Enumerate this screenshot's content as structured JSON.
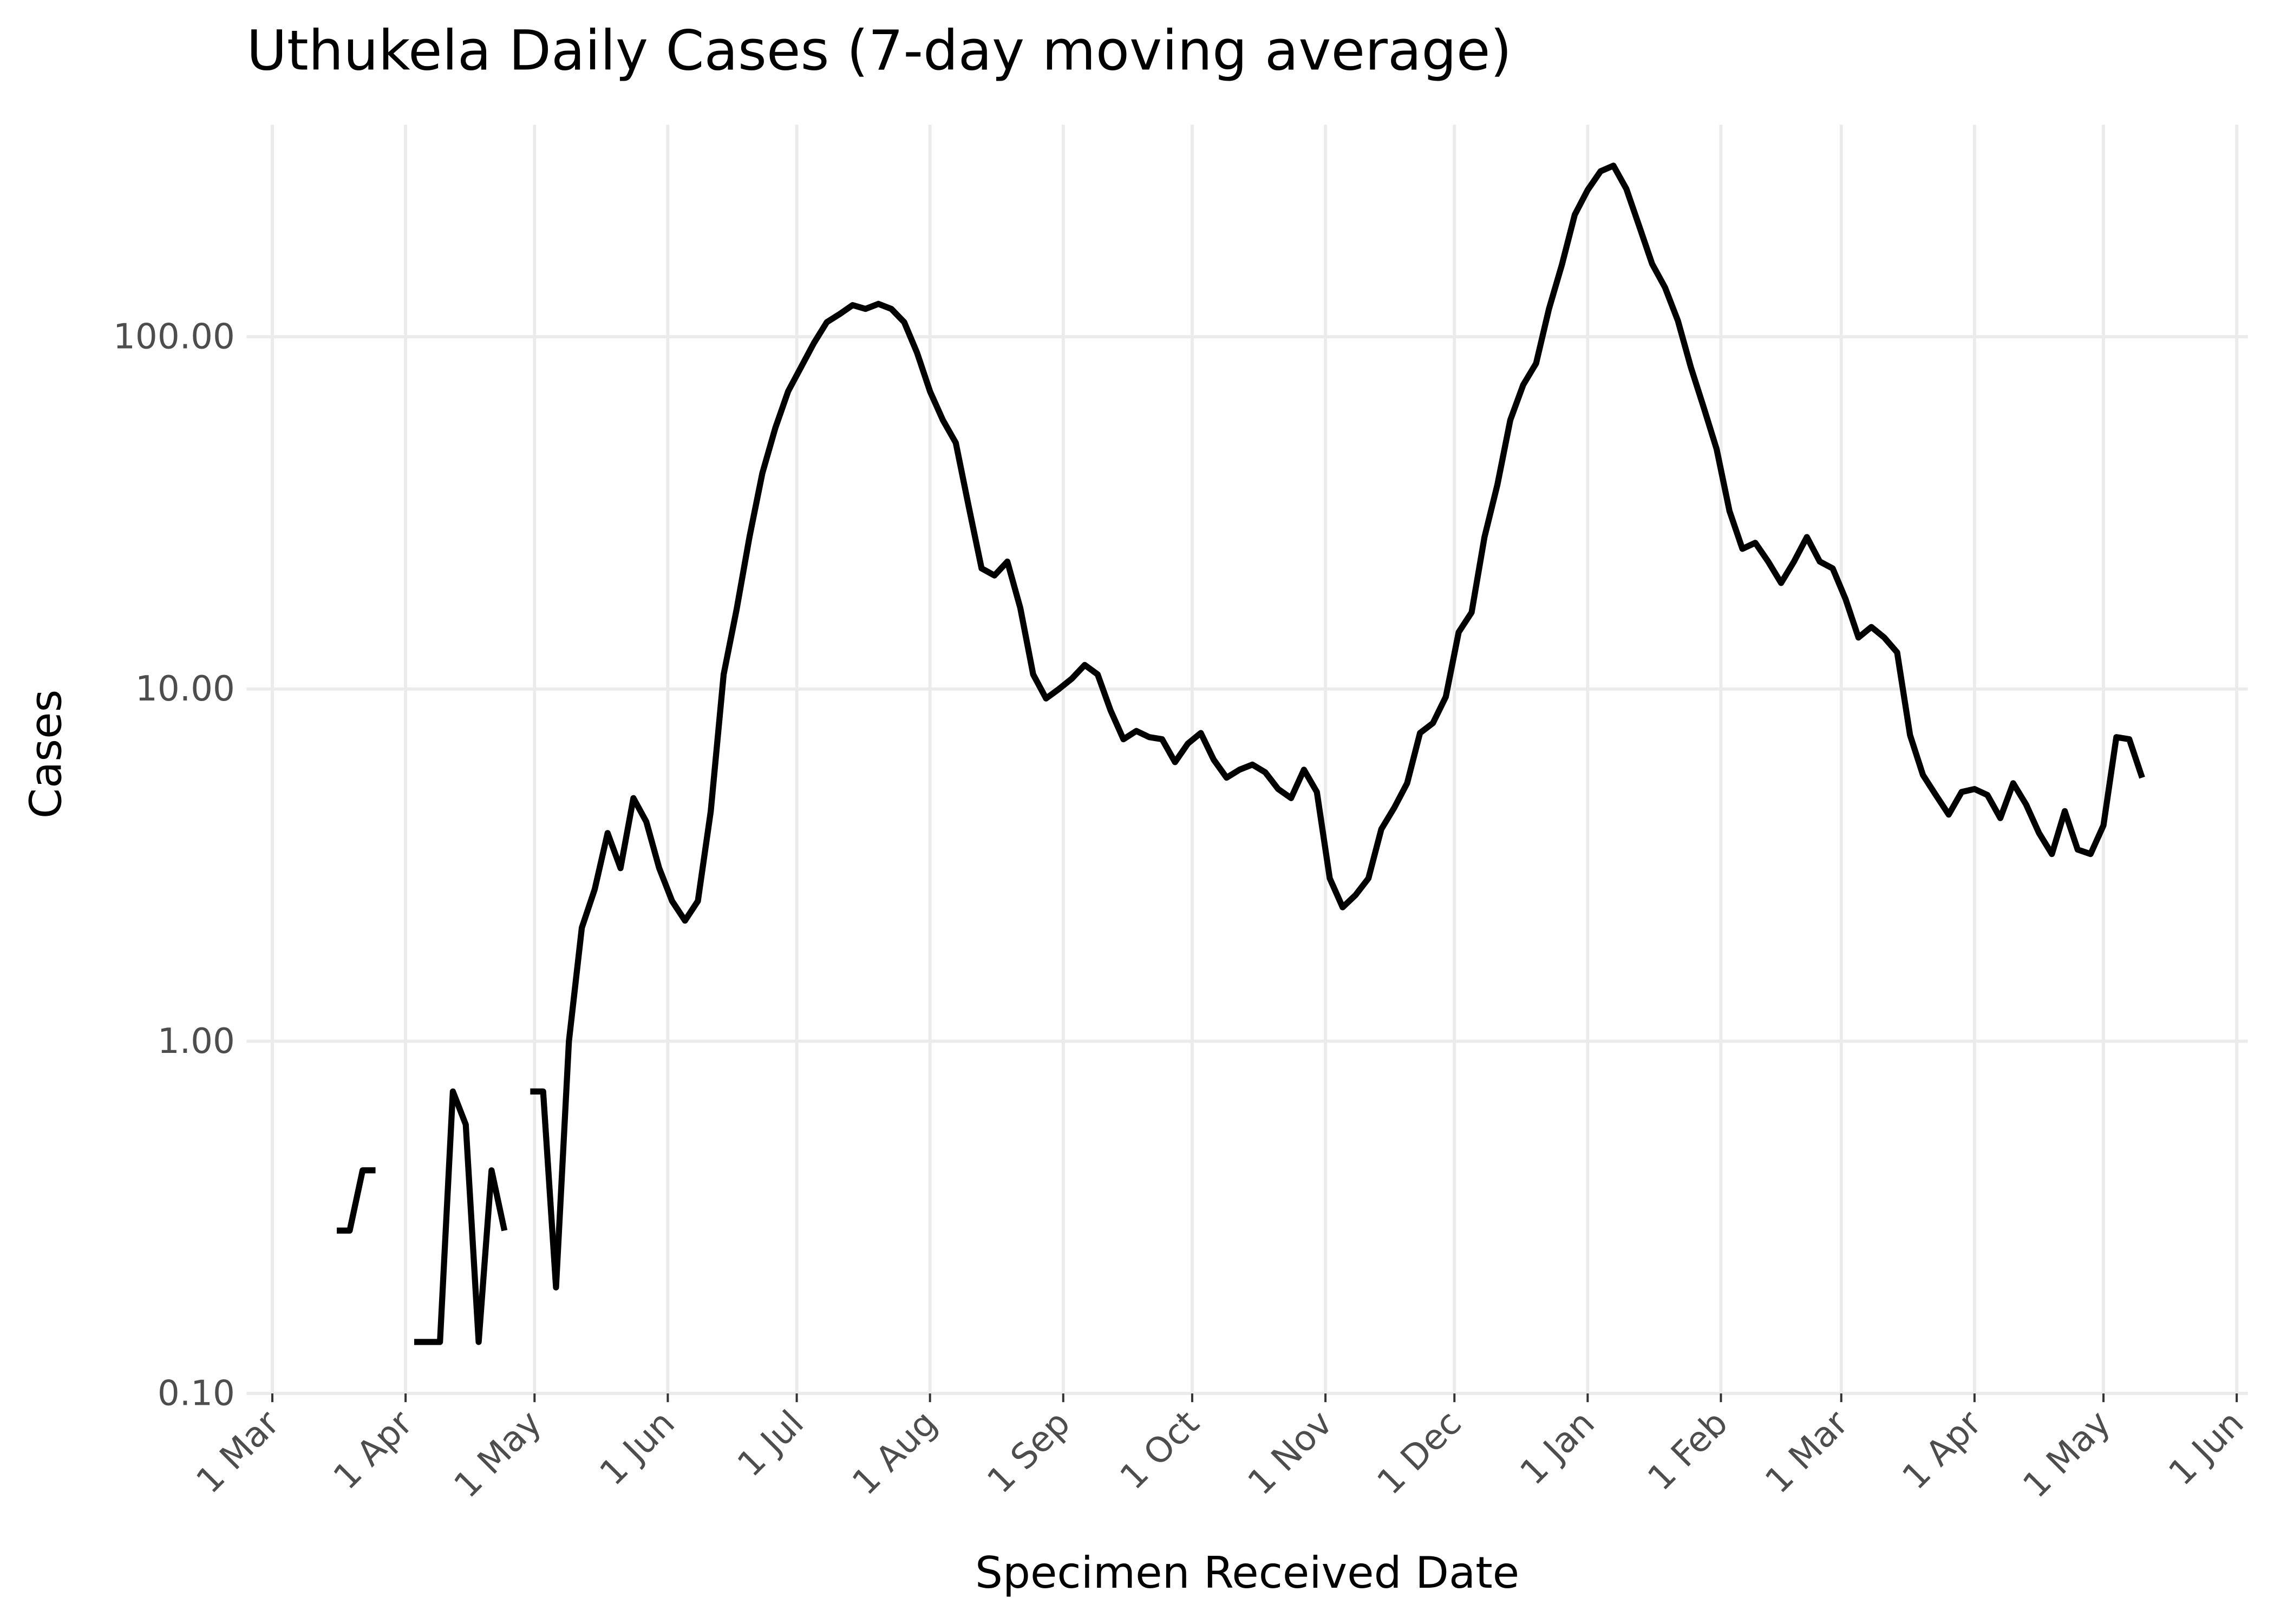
{
  "chart_data": {
    "type": "line",
    "title": "Uthukela Daily Cases (7-day moving average)",
    "x_label": "Specimen Received Date",
    "y_label": "Cases",
    "yscale": "log",
    "grid": true,
    "color": "#000000",
    "x": [
      "16 Mar",
      "19 Mar",
      "22 Mar",
      "25 Mar",
      "28 Mar",
      "31 Mar",
      "3 Apr",
      "6 Apr",
      "9 Apr",
      "12 Apr",
      "15 Apr",
      "18 Apr",
      "21 Apr",
      "24 Apr",
      "27 Apr",
      "30 Apr",
      "3 May",
      "6 May",
      "9 May",
      "12 May",
      "15 May",
      "18 May",
      "21 May",
      "24 May",
      "27 May",
      "30 May",
      "2 Jun",
      "5 Jun",
      "8 Jun",
      "11 Jun",
      "14 Jun",
      "17 Jun",
      "20 Jun",
      "23 Jun",
      "26 Jun",
      "29 Jun",
      "2 Jul",
      "5 Jul",
      "8 Jul",
      "11 Jul",
      "14 Jul",
      "17 Jul",
      "20 Jul",
      "23 Jul",
      "26 Jul",
      "29 Jul",
      "1 Aug",
      "4 Aug",
      "7 Aug",
      "10 Aug",
      "13 Aug",
      "16 Aug",
      "19 Aug",
      "22 Aug",
      "25 Aug",
      "28 Aug",
      "31 Aug",
      "3 Sep",
      "6 Sep",
      "9 Sep",
      "12 Sep",
      "15 Sep",
      "18 Sep",
      "21 Sep",
      "24 Sep",
      "27 Sep",
      "30 Sep",
      "3 Oct",
      "6 Oct",
      "9 Oct",
      "12 Oct",
      "15 Oct",
      "18 Oct",
      "21 Oct",
      "24 Oct",
      "27 Oct",
      "30 Oct",
      "2 Nov",
      "5 Nov",
      "8 Nov",
      "11 Nov",
      "14 Nov",
      "17 Nov",
      "20 Nov",
      "23 Nov",
      "26 Nov",
      "29 Nov",
      "2 Dec",
      "5 Dec",
      "8 Dec",
      "11 Dec",
      "14 Dec",
      "17 Dec",
      "20 Dec",
      "23 Dec",
      "26 Dec",
      "29 Dec",
      "1 Jan",
      "4 Jan",
      "7 Jan",
      "10 Jan",
      "13 Jan",
      "16 Jan",
      "19 Jan",
      "22 Jan",
      "25 Jan",
      "28 Jan",
      "31 Jan",
      "3 Feb",
      "6 Feb",
      "9 Feb",
      "12 Feb",
      "15 Feb",
      "18 Feb",
      "21 Feb",
      "24 Feb",
      "27 Feb",
      "2 Mar",
      "5 Mar",
      "8 Mar",
      "11 Mar",
      "14 Mar",
      "17 Mar",
      "20 Mar",
      "23 Mar",
      "26 Mar",
      "29 Mar",
      "1 Apr",
      "4 Apr",
      "7 Apr",
      "10 Apr",
      "13 Apr",
      "16 Apr",
      "19 Apr",
      "22 Apr",
      "25 Apr",
      "28 Apr",
      "1 May",
      "4 May",
      "7 May",
      "10 May"
    ],
    "values": [
      0.29,
      0.29,
      0.43,
      0.43,
      null,
      null,
      0.14,
      0.14,
      0.14,
      0.72,
      0.58,
      0.14,
      0.43,
      0.29,
      null,
      0.72,
      0.72,
      0.2,
      1.0,
      2.1,
      2.7,
      3.9,
      3.1,
      4.9,
      4.2,
      3.1,
      2.5,
      2.2,
      2.5,
      4.5,
      11,
      16.8,
      27,
      41,
      55,
      70,
      82,
      96,
      110,
      116,
      123,
      120,
      124,
      120,
      110,
      90,
      70,
      58,
      50,
      33,
      22,
      21,
      23,
      17,
      11,
      9.4,
      10,
      10.7,
      11.7,
      11,
      8.7,
      7.2,
      7.6,
      7.3,
      7.2,
      6.2,
      7.0,
      7.5,
      6.3,
      5.6,
      5.9,
      6.1,
      5.8,
      5.2,
      4.9,
      5.9,
      5.1,
      2.9,
      2.4,
      2.6,
      2.9,
      4.0,
      4.6,
      5.4,
      7.5,
      8.0,
      9.5,
      14.5,
      16.5,
      27,
      38,
      58,
      73,
      84,
      120,
      160,
      222,
      261,
      295,
      306,
      263,
      206,
      161,
      138,
      111,
      82,
      63,
      48,
      32,
      25,
      26,
      23,
      20,
      23,
      27,
      23,
      22,
      18,
      14,
      15,
      14,
      12.7,
      7.4,
      5.7,
      5.0,
      4.4,
      5.1,
      5.2,
      5.0,
      4.3,
      5.4,
      4.7,
      3.9,
      3.4,
      4.5,
      3.5,
      3.4,
      4.1,
      7.3,
      7.2,
      5.6
    ],
    "xlim": [
      -7,
      148.2
    ],
    "xticks": [
      {
        "value": -5,
        "label": "1 Mar"
      },
      {
        "value": 5.333,
        "label": "1 Apr"
      },
      {
        "value": 15.333,
        "label": "1 May"
      },
      {
        "value": 25.667,
        "label": "1 Jun"
      },
      {
        "value": 35.667,
        "label": "1 Jul"
      },
      {
        "value": 46,
        "label": "1 Aug"
      },
      {
        "value": 56.333,
        "label": "1 Sep"
      },
      {
        "value": 66.333,
        "label": "1 Oct"
      },
      {
        "value": 76.667,
        "label": "1 Nov"
      },
      {
        "value": 86.667,
        "label": "1 Dec"
      },
      {
        "value": 97,
        "label": "1 Jan"
      },
      {
        "value": 107.333,
        "label": "1 Feb"
      },
      {
        "value": 116.667,
        "label": "1 Mar"
      },
      {
        "value": 127,
        "label": "1 Apr"
      },
      {
        "value": 137,
        "label": "1 May"
      },
      {
        "value": 147.333,
        "label": "1 Jun"
      }
    ],
    "ylim": [
      0.1,
      400
    ],
    "yticks": [
      {
        "value": 0.1,
        "label": "0.10"
      },
      {
        "value": 1,
        "label": "1.00"
      },
      {
        "value": 10,
        "label": "10.00"
      },
      {
        "value": 100,
        "label": "100.00"
      }
    ]
  }
}
